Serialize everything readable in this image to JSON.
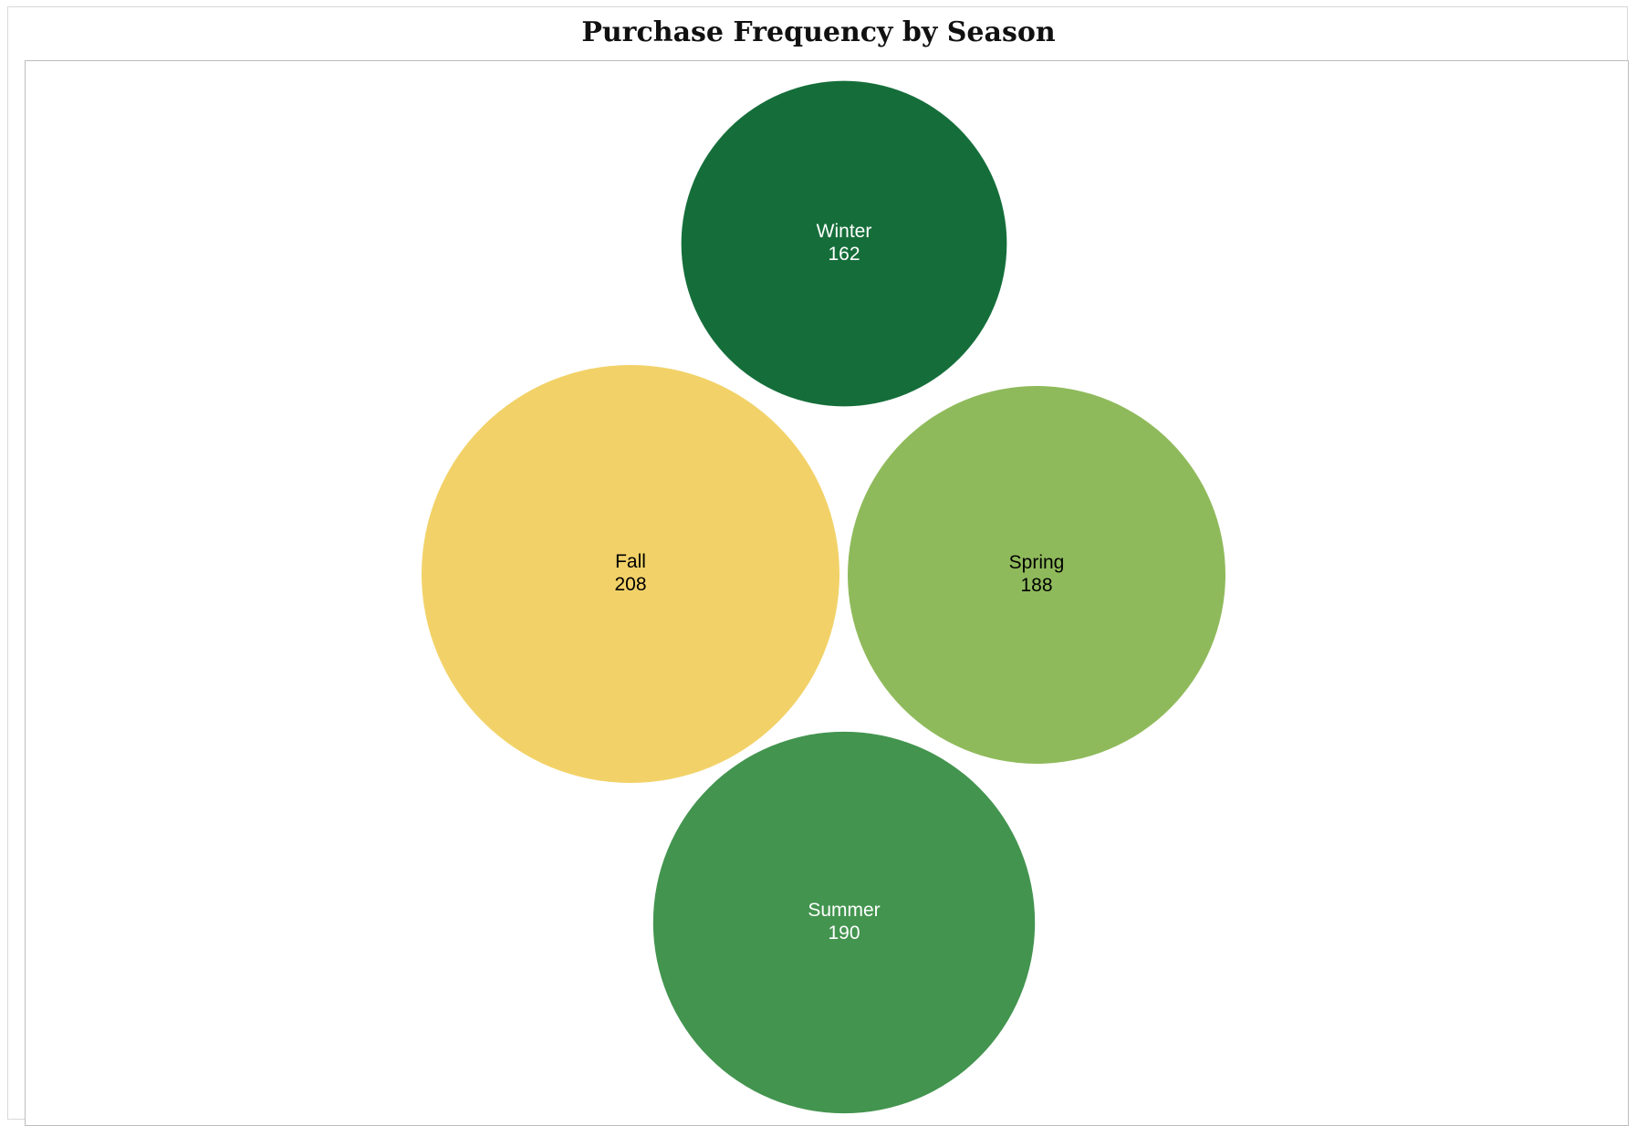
{
  "chart_data": {
    "type": "bubble",
    "title": "Purchase Frequency by Season",
    "xlabel": "",
    "ylabel": "",
    "legend": "none",
    "grid": false,
    "series": [
      {
        "name": "Winter",
        "value": 162,
        "color": "#156e3a",
        "label_color": "#ffffff"
      },
      {
        "name": "Fall",
        "value": 208,
        "color": "#f2d268",
        "label_color": "#000000"
      },
      {
        "name": "Spring",
        "value": 188,
        "color": "#8fba5b",
        "label_color": "#000000"
      },
      {
        "name": "Summer",
        "value": 190,
        "color": "#43944f",
        "label_color": "#ffffff"
      }
    ]
  }
}
